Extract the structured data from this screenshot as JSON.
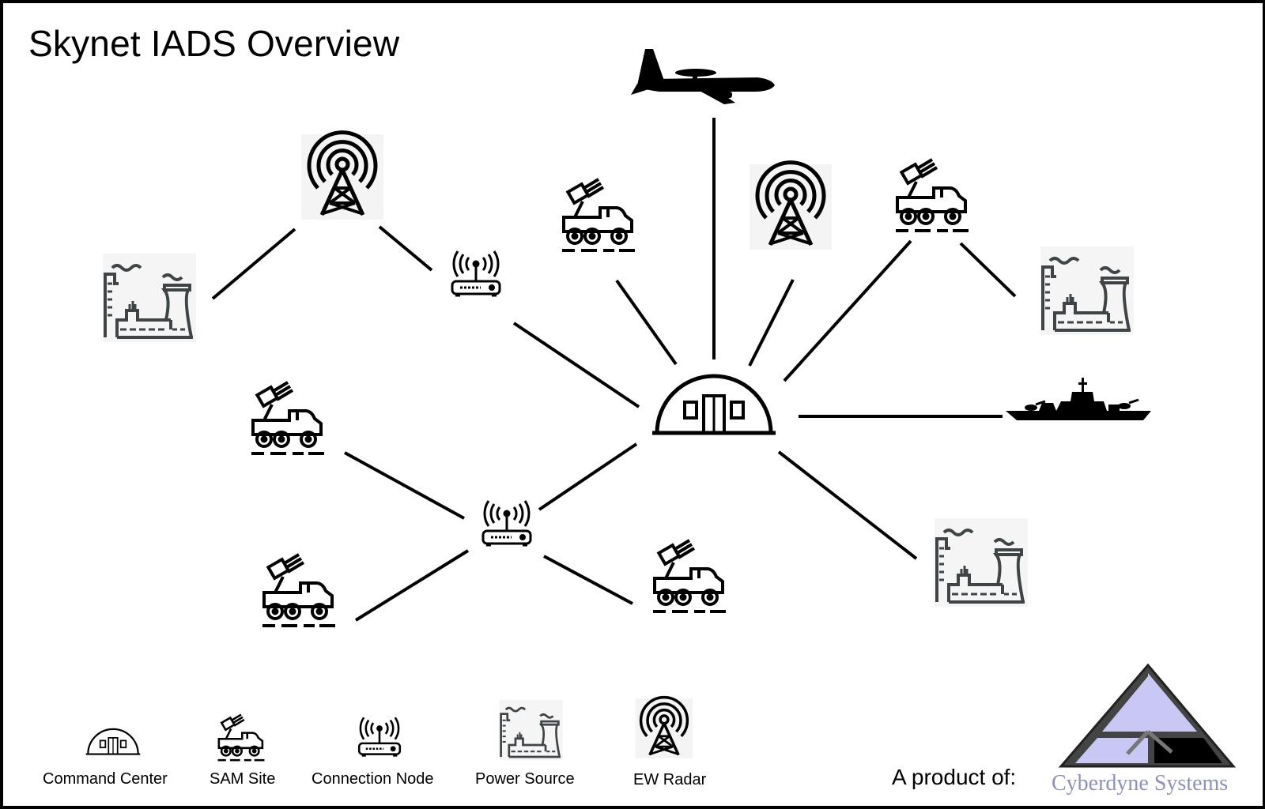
{
  "title": "Skynet IADS Overview",
  "legend": {
    "command_center": "Command Center",
    "sam_site": "SAM Site",
    "connection_node": "Connection Node",
    "power_source": "Power Source",
    "ew_radar": "EW Radar"
  },
  "credit": {
    "label": "A product of:",
    "company": "Cyberdyne Systems"
  },
  "colors": {
    "icon_dark": "#000000",
    "icon_grey": "#3f4447",
    "logo_fill": "#c9c8f5",
    "logo_text": "#8e90bf"
  }
}
